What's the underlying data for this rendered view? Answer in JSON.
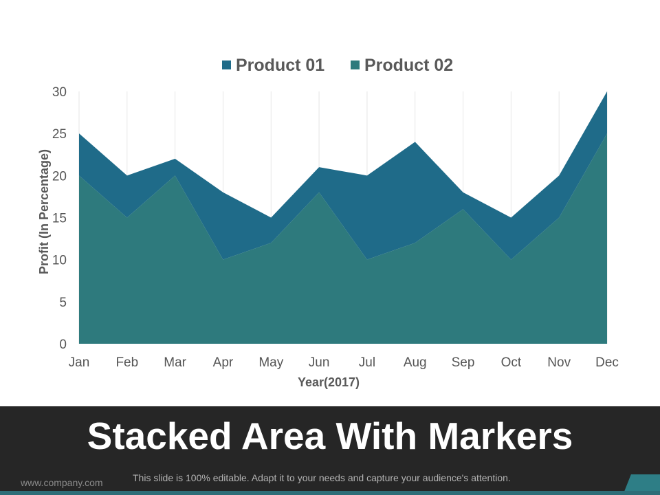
{
  "chart_data": {
    "type": "area",
    "stacked": true,
    "categories": [
      "Jan",
      "Feb",
      "Mar",
      "Apr",
      "May",
      "Jun",
      "Jul",
      "Aug",
      "Sep",
      "Oct",
      "Nov",
      "Dec"
    ],
    "series": [
      {
        "name": "Product 01",
        "values": [
          5,
          5,
          2,
          8,
          3,
          3,
          10,
          12,
          2,
          5,
          5,
          5
        ],
        "color": "#1f6b89"
      },
      {
        "name": "Product 02",
        "values": [
          20,
          15,
          20,
          10,
          12,
          18,
          10,
          12,
          16,
          10,
          15,
          25
        ],
        "color": "#2e7a7d"
      }
    ],
    "stack_order": [
      "Product 02",
      "Product 01"
    ],
    "xlabel": "Year(2017)",
    "ylabel": "Profit (In Percentage)",
    "ylim": [
      0,
      30
    ],
    "yticks": [
      0,
      5,
      10,
      15,
      20,
      25,
      30
    ],
    "grid": "vertical",
    "legend_position": "top"
  },
  "footer": {
    "title": "Stacked Area With Markers",
    "website": "www.company.com",
    "note": "This slide is 100% editable. Adapt it to your needs and capture your audience's attention."
  }
}
